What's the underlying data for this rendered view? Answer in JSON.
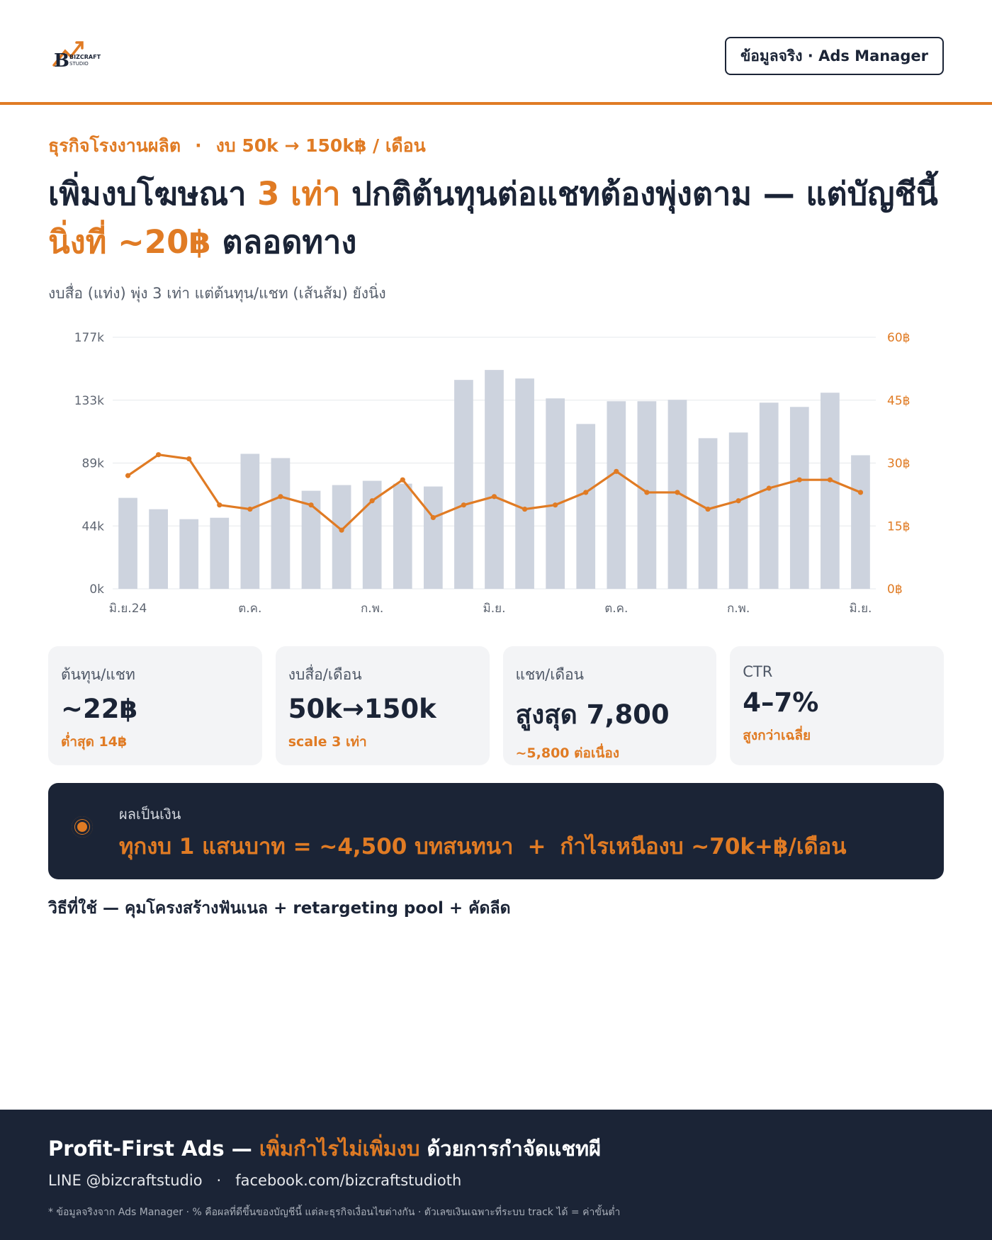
{
  "brand": {
    "logo_name": "BIZCRAFT",
    "logo_sub": "STUDIO"
  },
  "badge": "ข้อมูลจริง · Ads Manager",
  "eyebrow": {
    "left": "ธุรกิจโรงงานผลิต",
    "dot": "·",
    "right": "งบ 50k → 150k฿ / เดือน"
  },
  "headline": {
    "p1": "เพิ่มงบโฆษณา ",
    "p2": "3 เท่า",
    "p3": " ปกติต้นทุนต่อแชทต้องพุ่งตาม — แต่บัญชีนี้",
    "p4": "นิ่งที่ ~20฿",
    "p5": " ตลอดทาง"
  },
  "subhead": "งบสื่อ (แท่ง) พุ่ง 3 เท่า แต่ต้นทุน/แชท (เส้นส้ม) ยังนิ่ง",
  "chart_data": {
    "type": "bar",
    "bar_color": "#cdd3de",
    "line_color": "#e07b24",
    "x_tick_labels": [
      "มิ.ย.24",
      "ต.ค.",
      "ก.พ.",
      "มิ.ย.",
      "ต.ค.",
      "ก.พ.",
      "มิ.ย."
    ],
    "x_tick_indices": [
      0,
      4,
      8,
      12,
      16,
      20,
      24
    ],
    "y_left": {
      "ticks": [
        "0k",
        "44k",
        "89k",
        "133k",
        "177k"
      ],
      "lim": [
        0,
        177000
      ]
    },
    "y_right": {
      "ticks": [
        "0฿",
        "15฿",
        "30฿",
        "45฿",
        "60฿"
      ],
      "lim": [
        0,
        60
      ]
    },
    "grid": true,
    "series": [
      {
        "type": "bar",
        "axis": "left",
        "values": [
          64000,
          56000,
          49000,
          50000,
          95000,
          92000,
          69000,
          73000,
          76000,
          74000,
          72000,
          147000,
          154000,
          148000,
          134000,
          116000,
          132000,
          132000,
          133000,
          106000,
          110000,
          131000,
          128000,
          138000,
          94000
        ]
      },
      {
        "type": "line",
        "axis": "right",
        "values": [
          27,
          32,
          31,
          20,
          19,
          22,
          20,
          14,
          21,
          26,
          17,
          20,
          22,
          19,
          20,
          23,
          28,
          23,
          23,
          19,
          21,
          24,
          26,
          26,
          23
        ]
      }
    ]
  },
  "cards": [
    {
      "label": "ต้นทุน/แชท",
      "value": "~22฿",
      "sub": "ต่ำสุด 14฿"
    },
    {
      "label": "งบสื่อ/เดือน",
      "value": "50k→150k",
      "sub": "scale 3 เท่า"
    },
    {
      "label": "แชท/เดือน",
      "value": "สูงสุด 7,800",
      "sub": "~5,800 ต่อเนื่อง"
    },
    {
      "label": "CTR",
      "value": "4–7%",
      "sub": "สูงกว่าเฉลี่ย"
    }
  ],
  "result": {
    "label": "ผลเป็นเงิน",
    "left": "ทุกงบ 1 แสนบาท = ~4,500 บทสนทนา",
    "plus": "+",
    "right": "กำไรเหนืองบ ~70k+฿/เดือน"
  },
  "method": "วิธีที่ใช้ — คุมโครงสร้างฟันเนล + retargeting pool + คัดลีด",
  "footer": {
    "title_a": "Profit-First Ads — ",
    "title_b": "เพิ่มกำไรไม่เพิ่มงบ",
    "title_c": " ด้วยการกำจัดแชทผี",
    "line": "LINE @bizcraftstudio",
    "sep": "·",
    "facebook": "facebook.com/bizcraftstudioth",
    "note": "* ข้อมูลจริงจาก Ads Manager · % คือผลที่ดีขึ้นของบัญชีนี้ แต่ละธุรกิจเงื่อนไขต่างกัน · ตัวเลขเงินเฉพาะที่ระบบ track ได้ = ค่าขั้นต่ำ"
  }
}
